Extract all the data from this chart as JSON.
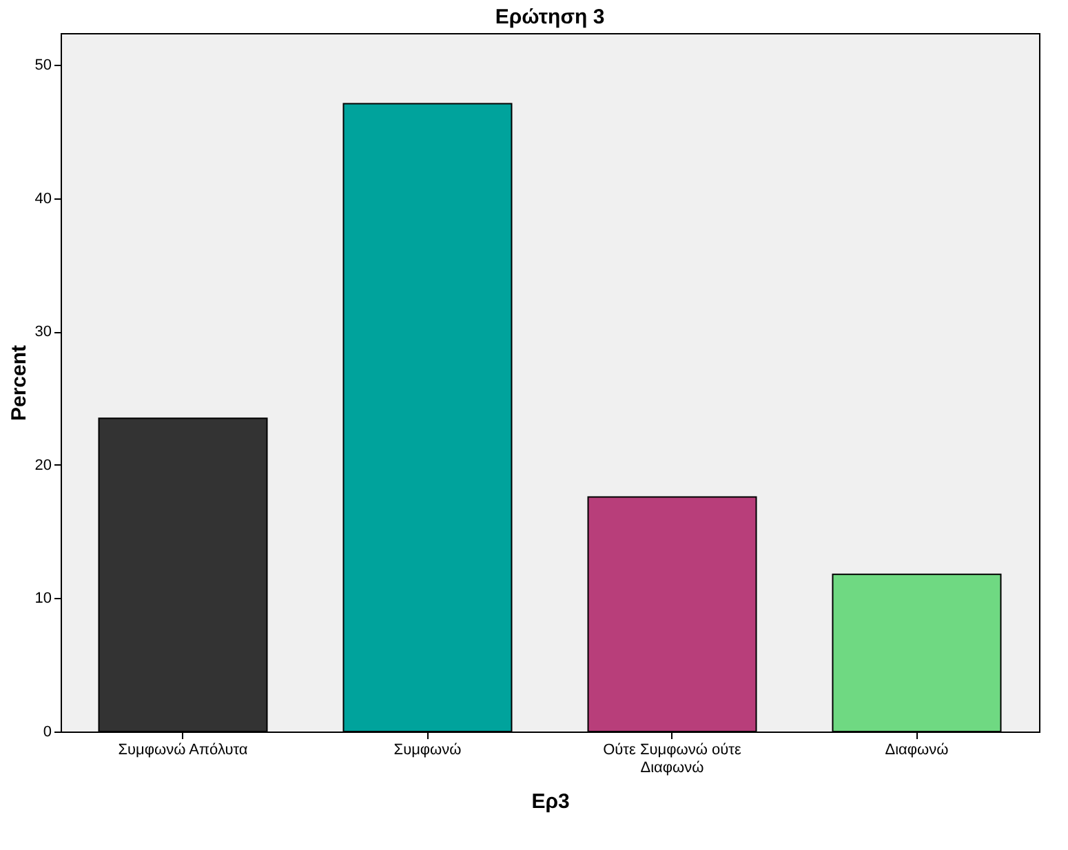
{
  "chart_data": {
    "type": "bar",
    "title": "Ερώτηση 3",
    "xlabel": "Ερ3",
    "ylabel": "Percent",
    "categories": [
      "Συμφωνώ Απόλυτα",
      "Συμφωνώ",
      "Ούτε Συμφωνώ ούτε\nΔιαφωνώ",
      "Διαφωνώ"
    ],
    "values": [
      23.5,
      47.1,
      17.6,
      11.8
    ],
    "colors": [
      "#333333",
      "#00a39c",
      "#b83e7a",
      "#6fd982"
    ],
    "ylim": [
      0,
      52.4
    ],
    "yticks": [
      0,
      10,
      20,
      30,
      40,
      50
    ],
    "grid": false
  }
}
